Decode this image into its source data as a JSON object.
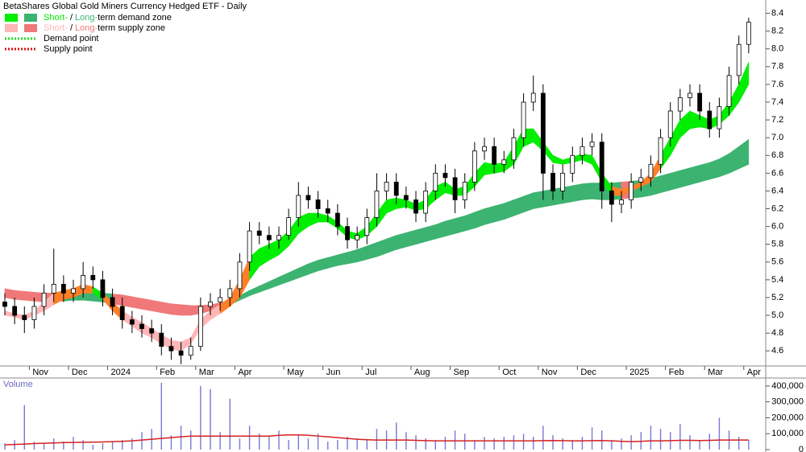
{
  "chart_data": [
    {
      "type": "candlestick",
      "title": "BetaShares Global Gold Miners Currency Hedged ETF - Daily",
      "legend": [
        {
          "short": "Short-",
          "sep": "/",
          "long": "Long-",
          "rest": "term demand zone",
          "kind": "demand"
        },
        {
          "short": "Short-",
          "sep": "/",
          "long": "Long-",
          "rest": "term supply zone",
          "kind": "supply"
        }
      ],
      "points": [
        {
          "label": "Demand point",
          "color": "#22dd22"
        },
        {
          "label": "Supply point",
          "color": "#dd1111"
        }
      ],
      "colors": {
        "demand_short": "#00ee00",
        "demand_long": "#3cb371",
        "supply_short": "#ffb6b6",
        "supply_long": "#f07878",
        "overlap": "#ff7f27",
        "up": "#ffffff",
        "down": "#000000"
      },
      "categories": [
        null,
        null,
        null,
        "Nov",
        null,
        null,
        null,
        "Dec",
        null,
        null,
        null,
        "2024",
        null,
        null,
        null,
        null,
        "Feb",
        null,
        null,
        null,
        "Mar",
        null,
        null,
        null,
        "Apr",
        null,
        null,
        null,
        null,
        "May",
        null,
        null,
        null,
        "Jun",
        null,
        null,
        null,
        "Jul",
        null,
        null,
        null,
        null,
        "Aug",
        null,
        null,
        null,
        "Sep",
        null,
        null,
        null,
        null,
        "Oct",
        null,
        null,
        null,
        "Nov",
        null,
        null,
        null,
        "Dec",
        null,
        null,
        null,
        null,
        "2025",
        null,
        null,
        null,
        "Feb",
        null,
        null,
        null,
        "Mar",
        null,
        null,
        null,
        "Apr"
      ],
      "open": [
        5.15,
        5.1,
        5.0,
        4.95,
        5.1,
        5.25,
        5.35,
        5.25,
        5.3,
        5.45,
        5.4,
        5.2,
        5.1,
        4.95,
        4.9,
        4.85,
        4.8,
        4.65,
        4.6,
        4.55,
        4.65,
        5.1,
        5.15,
        5.2,
        5.3,
        5.6,
        5.95,
        5.9,
        5.85,
        5.9,
        6.1,
        6.35,
        6.3,
        6.2,
        6.15,
        6.0,
        5.85,
        5.9,
        6.1,
        6.4,
        6.5,
        6.35,
        6.3,
        6.15,
        6.4,
        6.6,
        6.55,
        6.3,
        6.5,
        6.85,
        6.9,
        6.7,
        6.75,
        7.0,
        7.4,
        7.5,
        6.6,
        6.4,
        6.6,
        6.8,
        6.9,
        6.95,
        6.4,
        6.25,
        6.3,
        6.5,
        6.55,
        6.7,
        7.0,
        7.3,
        7.45,
        7.5,
        7.3,
        7.1,
        7.35,
        7.7,
        8.05
      ],
      "high": [
        5.25,
        5.2,
        5.1,
        5.2,
        5.35,
        5.75,
        5.45,
        5.4,
        5.6,
        5.55,
        5.5,
        5.3,
        5.2,
        5.05,
        5.0,
        4.95,
        4.9,
        4.75,
        4.7,
        4.75,
        5.2,
        5.25,
        5.3,
        5.4,
        5.7,
        6.05,
        6.05,
        6.0,
        6.0,
        6.2,
        6.5,
        6.45,
        6.4,
        6.3,
        6.25,
        6.1,
        6.0,
        6.2,
        6.6,
        6.6,
        6.6,
        6.45,
        6.4,
        6.5,
        6.7,
        6.7,
        6.65,
        6.6,
        6.95,
        7.0,
        7.0,
        6.85,
        7.1,
        7.5,
        7.7,
        7.6,
        6.7,
        6.7,
        6.9,
        7.0,
        7.05,
        7.05,
        6.5,
        6.4,
        6.6,
        6.65,
        6.8,
        7.1,
        7.4,
        7.55,
        7.6,
        7.6,
        7.4,
        7.45,
        7.8,
        8.15,
        8.35
      ],
      "low": [
        5.0,
        4.9,
        4.8,
        4.85,
        5.0,
        5.15,
        5.15,
        5.15,
        5.2,
        5.3,
        5.1,
        5.0,
        4.85,
        4.8,
        4.75,
        4.7,
        4.55,
        4.5,
        4.45,
        4.5,
        4.6,
        5.0,
        5.05,
        5.1,
        5.2,
        5.5,
        5.8,
        5.75,
        5.75,
        5.85,
        6.0,
        6.2,
        6.1,
        6.05,
        5.9,
        5.75,
        5.75,
        5.8,
        6.0,
        6.3,
        6.25,
        6.2,
        6.05,
        6.05,
        6.3,
        6.45,
        6.15,
        6.2,
        6.4,
        6.75,
        6.6,
        6.6,
        6.65,
        6.9,
        7.3,
        6.3,
        6.3,
        6.3,
        6.5,
        6.7,
        6.8,
        6.2,
        6.05,
        6.15,
        6.2,
        6.4,
        6.45,
        6.6,
        6.9,
        7.2,
        7.35,
        7.2,
        7.0,
        7.0,
        7.25,
        7.6,
        7.95
      ],
      "close": [
        5.1,
        5.0,
        4.95,
        5.1,
        5.25,
        5.35,
        5.25,
        5.3,
        5.45,
        5.4,
        5.2,
        5.1,
        4.95,
        4.9,
        4.85,
        4.8,
        4.65,
        4.6,
        4.55,
        4.65,
        5.1,
        5.15,
        5.2,
        5.3,
        5.6,
        5.95,
        5.9,
        5.85,
        5.9,
        6.1,
        6.35,
        6.3,
        6.2,
        6.15,
        6.0,
        5.85,
        5.9,
        6.1,
        6.4,
        6.5,
        6.35,
        6.3,
        6.15,
        6.4,
        6.6,
        6.55,
        6.3,
        6.5,
        6.85,
        6.9,
        6.7,
        6.75,
        7.0,
        7.4,
        7.5,
        6.6,
        6.4,
        6.6,
        6.8,
        6.9,
        6.95,
        6.4,
        6.25,
        6.3,
        6.5,
        6.55,
        6.7,
        7.0,
        7.3,
        7.45,
        7.5,
        7.3,
        7.1,
        7.35,
        7.7,
        8.05,
        8.3
      ],
      "short_zone": {
        "upper": [
          5.05,
          5.02,
          5.0,
          5.05,
          5.15,
          5.25,
          5.28,
          5.3,
          5.35,
          5.32,
          5.25,
          5.15,
          5.05,
          4.98,
          4.92,
          4.85,
          4.78,
          4.72,
          4.7,
          4.75,
          4.95,
          5.05,
          5.12,
          5.2,
          5.4,
          5.65,
          5.75,
          5.8,
          5.85,
          5.95,
          6.1,
          6.15,
          6.15,
          6.12,
          6.05,
          5.95,
          5.92,
          6.0,
          6.15,
          6.3,
          6.32,
          6.3,
          6.25,
          6.3,
          6.45,
          6.5,
          6.42,
          6.45,
          6.6,
          6.72,
          6.7,
          6.72,
          6.9,
          7.1,
          7.1,
          6.95,
          6.8,
          6.75,
          6.78,
          6.82,
          6.8,
          6.6,
          6.45,
          6.42,
          6.45,
          6.5,
          6.6,
          6.8,
          7.0,
          7.2,
          7.3,
          7.25,
          7.2,
          7.25,
          7.4,
          7.6,
          7.85
        ],
        "lower": [
          5.0,
          4.98,
          4.95,
          5.0,
          5.05,
          5.12,
          5.18,
          5.2,
          5.25,
          5.25,
          5.18,
          5.05,
          4.95,
          4.88,
          4.8,
          4.75,
          4.68,
          4.62,
          4.6,
          4.68,
          4.85,
          4.95,
          5.02,
          5.1,
          5.2,
          5.4,
          5.55,
          5.62,
          5.68,
          5.78,
          5.92,
          6.0,
          6.05,
          6.05,
          5.98,
          5.88,
          5.85,
          5.9,
          6.0,
          6.15,
          6.2,
          6.22,
          6.18,
          6.2,
          6.3,
          6.38,
          6.35,
          6.35,
          6.45,
          6.58,
          6.6,
          6.62,
          6.7,
          6.9,
          6.95,
          6.85,
          6.72,
          6.7,
          6.72,
          6.75,
          6.7,
          6.5,
          6.35,
          6.35,
          6.4,
          6.45,
          6.5,
          6.65,
          6.8,
          7.0,
          7.1,
          7.12,
          7.1,
          7.15,
          7.25,
          7.4,
          7.6
        ]
      },
      "long_zone": {
        "upper": [
          5.3,
          5.28,
          5.27,
          5.26,
          5.25,
          5.25,
          5.25,
          5.26,
          5.26,
          5.25,
          5.25,
          5.24,
          5.23,
          5.21,
          5.19,
          5.17,
          5.15,
          5.13,
          5.12,
          5.11,
          5.11,
          5.12,
          5.14,
          5.17,
          5.22,
          5.28,
          5.33,
          5.38,
          5.43,
          5.48,
          5.53,
          5.58,
          5.62,
          5.65,
          5.68,
          5.71,
          5.74,
          5.78,
          5.82,
          5.86,
          5.9,
          5.93,
          5.96,
          5.99,
          6.02,
          6.06,
          6.09,
          6.12,
          6.16,
          6.2,
          6.23,
          6.26,
          6.3,
          6.34,
          6.38,
          6.4,
          6.42,
          6.44,
          6.46,
          6.48,
          6.49,
          6.49,
          6.49,
          6.5,
          6.51,
          6.52,
          6.54,
          6.57,
          6.6,
          6.63,
          6.66,
          6.69,
          6.72,
          6.76,
          6.82,
          6.9,
          6.98
        ],
        "lower": [
          5.2,
          5.18,
          5.17,
          5.16,
          5.15,
          5.15,
          5.16,
          5.17,
          5.17,
          5.16,
          5.15,
          5.13,
          5.11,
          5.09,
          5.07,
          5.05,
          5.03,
          5.01,
          5.0,
          5.0,
          5.02,
          5.05,
          5.08,
          5.12,
          5.17,
          5.22,
          5.26,
          5.3,
          5.34,
          5.38,
          5.42,
          5.46,
          5.5,
          5.53,
          5.56,
          5.58,
          5.6,
          5.63,
          5.66,
          5.7,
          5.74,
          5.77,
          5.8,
          5.83,
          5.86,
          5.89,
          5.92,
          5.95,
          5.98,
          6.02,
          6.05,
          6.08,
          6.12,
          6.16,
          6.2,
          6.22,
          6.24,
          6.26,
          6.28,
          6.3,
          6.31,
          6.3,
          6.3,
          6.31,
          6.32,
          6.33,
          6.35,
          6.38,
          6.41,
          6.44,
          6.47,
          6.5,
          6.53,
          6.56,
          6.6,
          6.65,
          6.7
        ]
      },
      "ylim": [
        4.43,
        8.55
      ],
      "yticks": [
        4.6,
        4.8,
        {
          "value": 5,
          "label": "5.0"
        },
        5.2,
        5.4,
        5.6,
        5.8,
        {
          "value": 6,
          "label": "6.0"
        },
        6.2,
        6.4,
        6.6,
        6.8,
        {
          "value": 7,
          "label": "7.0"
        },
        7.2,
        7.4,
        7.6,
        7.8,
        {
          "value": 8,
          "label": "8.0"
        },
        8.2,
        8.4
      ]
    },
    {
      "type": "bar",
      "title": "Volume",
      "color": "#7878d8",
      "ma_color": "#d62020",
      "values": [
        40000,
        60000,
        280000,
        50000,
        40000,
        70000,
        50000,
        80000,
        60000,
        30000,
        40000,
        50000,
        60000,
        70000,
        110000,
        130000,
        420000,
        90000,
        150000,
        120000,
        400000,
        380000,
        110000,
        320000,
        70000,
        150000,
        100000,
        80000,
        120000,
        60000,
        90000,
        70000,
        100000,
        50000,
        60000,
        80000,
        70000,
        60000,
        130000,
        120000,
        170000,
        110000,
        90000,
        70000,
        60000,
        80000,
        120000,
        100000,
        60000,
        80000,
        70000,
        80000,
        90000,
        100000,
        80000,
        150000,
        90000,
        70000,
        60000,
        80000,
        140000,
        120000,
        60000,
        70000,
        90000,
        110000,
        150000,
        130000,
        110000,
        160000,
        90000,
        60000,
        100000,
        200000,
        120000,
        80000,
        60000
      ],
      "moving_average": [
        30000,
        32000,
        35000,
        38000,
        40000,
        42000,
        44000,
        45000,
        46000,
        47000,
        48000,
        50000,
        52000,
        55000,
        60000,
        65000,
        70000,
        75000,
        80000,
        85000,
        85000,
        85000,
        85000,
        85000,
        85000,
        85000,
        85000,
        85000,
        90000,
        92000,
        92000,
        90000,
        85000,
        80000,
        75000,
        70000,
        65000,
        62000,
        60000,
        60000,
        60000,
        60000,
        58000,
        56000,
        55000,
        55000,
        55000,
        55000,
        55000,
        55000,
        55000,
        55000,
        55000,
        55000,
        55000,
        56000,
        57000,
        56000,
        55000,
        55000,
        56000,
        57000,
        55000,
        52000,
        50000,
        52000,
        55000,
        55000,
        56000,
        58000,
        58000,
        57000,
        58000,
        60000,
        60000,
        60000,
        60000
      ],
      "ylim": [
        0,
        450000
      ],
      "yticks": [
        0,
        {
          "value": 100000,
          "label": "100,000"
        },
        {
          "value": 200000,
          "label": "200,000"
        },
        {
          "value": 300000,
          "label": "300,000"
        },
        {
          "value": 400000,
          "label": "400,000"
        }
      ]
    }
  ]
}
